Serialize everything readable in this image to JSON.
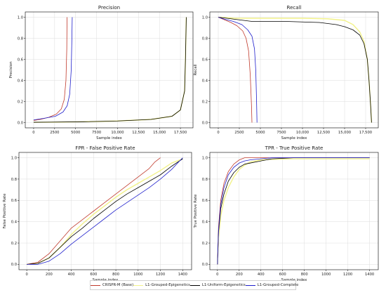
{
  "figure": {
    "legend": [
      {
        "label": "CRISPR-M (Base)",
        "color": "#c0392b"
      },
      {
        "label": "L1-Grouped-Epigenetics",
        "color": "#f2f28a"
      },
      {
        "label": "L1-Uniform-Epigenetics",
        "color": "#000000"
      },
      {
        "label": "L1-Grouped-Complete",
        "color": "#1f1fcc"
      }
    ]
  },
  "chart_data": [
    {
      "type": "line",
      "title": "Precision",
      "xlabel": "Sample index",
      "ylabel": "Precision",
      "xlim": [
        -1000,
        19000
      ],
      "ylim": [
        -0.05,
        1.05
      ],
      "xticks": [
        0,
        2500,
        5000,
        7500,
        10000,
        12500,
        15000,
        17500
      ],
      "xtick_labels": [
        "0",
        "2500",
        "5000",
        "7500",
        "10,000",
        "12,500",
        "15,000",
        "17,500"
      ],
      "yticks": [
        0.0,
        0.2,
        0.4,
        0.6,
        0.8,
        1.0
      ],
      "ytick_labels": [
        "0.0",
        "0.2",
        "0.4",
        "0.6",
        "0.8",
        "1.0"
      ],
      "grid": true,
      "series": [
        {
          "name": "L1-Grouped-Epigenetics",
          "color": "#f2f28a",
          "width": 1.4,
          "x": [
            0,
            2000,
            6000,
            10000,
            14000,
            16500,
            17500,
            18000,
            18100,
            18200
          ],
          "y": [
            0.003,
            0.004,
            0.008,
            0.015,
            0.03,
            0.06,
            0.12,
            0.3,
            0.6,
            1.0
          ]
        },
        {
          "name": "L1-Uniform-Epigenetics",
          "color": "#000000",
          "width": 0.8,
          "x": [
            0,
            2000,
            6000,
            10000,
            14000,
            16500,
            17500,
            18000,
            18100,
            18200
          ],
          "y": [
            0.003,
            0.004,
            0.008,
            0.015,
            0.03,
            0.06,
            0.12,
            0.3,
            0.6,
            1.0
          ]
        },
        {
          "name": "CRISPR-M (Base)",
          "color": "#c0392b",
          "width": 0.8,
          "x": [
            0,
            800,
            1800,
            2700,
            3300,
            3650,
            3850,
            3950,
            3980
          ],
          "y": [
            0.02,
            0.03,
            0.05,
            0.08,
            0.13,
            0.22,
            0.4,
            0.7,
            1.0
          ]
        },
        {
          "name": "L1-Grouped-Complete",
          "color": "#1f1fcc",
          "width": 0.8,
          "x": [
            0,
            1200,
            2600,
            3500,
            4000,
            4300,
            4480,
            4560,
            4600
          ],
          "y": [
            0.025,
            0.04,
            0.06,
            0.1,
            0.16,
            0.27,
            0.5,
            0.8,
            1.0
          ]
        }
      ]
    },
    {
      "type": "line",
      "title": "Recall",
      "xlabel": "Sample index",
      "ylabel": "Recall",
      "xlim": [
        -1000,
        19000
      ],
      "ylim": [
        -0.05,
        1.05
      ],
      "xticks": [
        0,
        2500,
        5000,
        7500,
        10000,
        12500,
        15000,
        17500
      ],
      "xtick_labels": [
        "0",
        "2500",
        "5000",
        "7500",
        "10,000",
        "12,500",
        "15,000",
        "17,500"
      ],
      "yticks": [
        0.0,
        0.2,
        0.4,
        0.6,
        0.8,
        1.0
      ],
      "ytick_labels": [
        "0.0",
        "0.2",
        "0.4",
        "0.6",
        "0.8",
        "1.0"
      ],
      "grid": true,
      "series": [
        {
          "name": "L1-Grouped-Epigenetics",
          "color": "#f2f28a",
          "width": 1.4,
          "x": [
            0,
            1000,
            2000,
            6000,
            10000,
            13000,
            15000,
            16000,
            16800,
            17300,
            17700,
            17900,
            18100,
            18200
          ],
          "y": [
            1.0,
            0.995,
            0.99,
            0.99,
            0.99,
            0.985,
            0.97,
            0.93,
            0.86,
            0.77,
            0.6,
            0.4,
            0.15,
            0.0
          ]
        },
        {
          "name": "L1-Uniform-Epigenetics",
          "color": "#000000",
          "width": 0.8,
          "x": [
            0,
            2000,
            4000,
            8000,
            12000,
            14000,
            15000,
            16000,
            16800,
            17300,
            17700,
            17900,
            18100,
            18200
          ],
          "y": [
            1.0,
            0.98,
            0.96,
            0.96,
            0.95,
            0.93,
            0.91,
            0.88,
            0.83,
            0.75,
            0.6,
            0.4,
            0.15,
            0.0
          ]
        },
        {
          "name": "CRISPR-M (Base)",
          "color": "#c0392b",
          "width": 0.8,
          "x": [
            0,
            600,
            1500,
            2200,
            2900,
            3300,
            3600,
            3800,
            3950,
            4000
          ],
          "y": [
            1.0,
            0.98,
            0.95,
            0.92,
            0.87,
            0.8,
            0.68,
            0.45,
            0.15,
            0.0
          ]
        },
        {
          "name": "L1-Grouped-Complete",
          "color": "#1f1fcc",
          "width": 0.8,
          "x": [
            0,
            800,
            1800,
            2800,
            3500,
            4000,
            4300,
            4450,
            4550,
            4600
          ],
          "y": [
            1.0,
            0.98,
            0.96,
            0.93,
            0.88,
            0.82,
            0.7,
            0.5,
            0.2,
            0.0
          ]
        }
      ]
    },
    {
      "type": "line",
      "title": "FPR - False Positive Rate",
      "xlabel": "Sample index",
      "ylabel": "False Positive Rate",
      "xlim": [
        -70,
        1480
      ],
      "ylim": [
        -0.05,
        1.05
      ],
      "xticks": [
        0,
        200,
        400,
        600,
        800,
        1000,
        1200,
        1400
      ],
      "xtick_labels": [
        "0",
        "200",
        "400",
        "600",
        "800",
        "1000",
        "1200",
        "1400"
      ],
      "yticks": [
        0.0,
        0.2,
        0.4,
        0.6,
        0.8,
        1.0
      ],
      "ytick_labels": [
        "0.0",
        "0.2",
        "0.4",
        "0.6",
        "0.8",
        "1.0"
      ],
      "grid": true,
      "series": [
        {
          "name": "L1-Grouped-Epigenetics",
          "color": "#f2f28a",
          "width": 1.4,
          "x": [
            0,
            100,
            200,
            300,
            400,
            500,
            600,
            700,
            800,
            900,
            1000,
            1100,
            1200,
            1300,
            1400
          ],
          "y": [
            0.0,
            0.01,
            0.06,
            0.16,
            0.28,
            0.38,
            0.47,
            0.55,
            0.63,
            0.7,
            0.76,
            0.82,
            0.88,
            0.95,
            0.99
          ]
        },
        {
          "name": "CRISPR-M (Base)",
          "color": "#c0392b",
          "width": 0.8,
          "x": [
            0,
            100,
            200,
            300,
            400,
            500,
            600,
            700,
            800,
            900,
            1000,
            1100,
            1150,
            1200
          ],
          "y": [
            0.0,
            0.02,
            0.1,
            0.22,
            0.34,
            0.42,
            0.5,
            0.58,
            0.66,
            0.74,
            0.82,
            0.9,
            0.96,
            1.0
          ]
        },
        {
          "name": "L1-Uniform-Epigenetics",
          "color": "#000000",
          "width": 0.8,
          "x": [
            0,
            100,
            200,
            300,
            400,
            500,
            600,
            700,
            800,
            900,
            1000,
            1100,
            1200,
            1300,
            1400
          ],
          "y": [
            0.0,
            0.01,
            0.06,
            0.16,
            0.26,
            0.34,
            0.43,
            0.51,
            0.59,
            0.66,
            0.72,
            0.78,
            0.84,
            0.92,
            0.99
          ]
        },
        {
          "name": "L1-Grouped-Complete",
          "color": "#1f1fcc",
          "width": 0.8,
          "x": [
            0,
            100,
            200,
            300,
            400,
            500,
            600,
            700,
            800,
            900,
            1000,
            1100,
            1200,
            1300,
            1400
          ],
          "y": [
            0.0,
            0.0,
            0.03,
            0.1,
            0.19,
            0.27,
            0.35,
            0.43,
            0.51,
            0.58,
            0.65,
            0.72,
            0.8,
            0.89,
            1.0
          ]
        }
      ]
    },
    {
      "type": "line",
      "title": "TPR - True Positive Rate",
      "xlabel": "Sample index",
      "ylabel": "True Positive Rate",
      "xlim": [
        -70,
        1480
      ],
      "ylim": [
        -0.05,
        1.05
      ],
      "xticks": [
        0,
        200,
        400,
        600,
        800,
        1000,
        1200,
        1400
      ],
      "xtick_labels": [
        "0",
        "200",
        "400",
        "600",
        "800",
        "1000",
        "1200",
        "1400"
      ],
      "yticks": [
        0.0,
        0.2,
        0.4,
        0.6,
        0.8,
        1.0
      ],
      "ytick_labels": [
        "0.0",
        "0.2",
        "0.4",
        "0.6",
        "0.8",
        "1.0"
      ],
      "grid": true,
      "series": [
        {
          "name": "L1-Grouped-Epigenetics",
          "color": "#f2f28a",
          "width": 1.4,
          "x": [
            0,
            10,
            30,
            60,
            100,
            150,
            200,
            250,
            300,
            400,
            500,
            700,
            1000,
            1400
          ],
          "y": [
            0.0,
            0.25,
            0.45,
            0.6,
            0.72,
            0.82,
            0.89,
            0.93,
            0.96,
            0.98,
            0.985,
            0.99,
            0.99,
            0.99
          ]
        },
        {
          "name": "CRISPR-M (Base)",
          "color": "#c0392b",
          "width": 0.8,
          "x": [
            0,
            10,
            30,
            60,
            100,
            150,
            200,
            250,
            300,
            400,
            600,
            1000,
            1400
          ],
          "y": [
            0.0,
            0.35,
            0.6,
            0.76,
            0.87,
            0.94,
            0.98,
            1.0,
            1.0,
            1.0,
            1.0,
            1.0,
            1.0
          ]
        },
        {
          "name": "L1-Uniform-Epigenetics",
          "color": "#000000",
          "width": 0.8,
          "x": [
            0,
            10,
            30,
            60,
            100,
            150,
            200,
            250,
            300,
            400,
            500,
            700,
            1000,
            1400
          ],
          "y": [
            0.0,
            0.3,
            0.52,
            0.66,
            0.78,
            0.86,
            0.91,
            0.94,
            0.95,
            0.97,
            0.99,
            1.0,
            1.0,
            1.0
          ]
        },
        {
          "name": "L1-Grouped-Complete",
          "color": "#1f1fcc",
          "width": 0.8,
          "x": [
            0,
            10,
            30,
            60,
            100,
            150,
            200,
            250,
            300,
            400,
            500,
            700,
            1000,
            1400
          ],
          "y": [
            0.0,
            0.32,
            0.56,
            0.72,
            0.84,
            0.91,
            0.95,
            0.97,
            0.98,
            0.99,
            1.0,
            1.0,
            1.0,
            1.0
          ]
        }
      ]
    }
  ]
}
